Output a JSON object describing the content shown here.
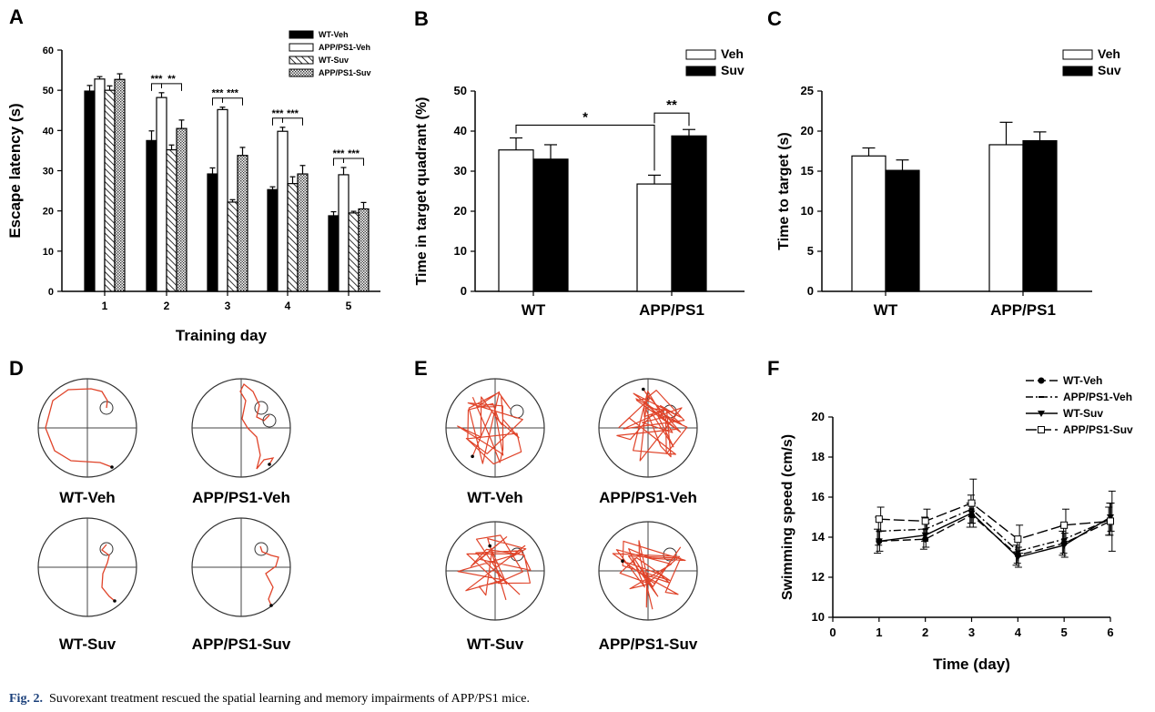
{
  "caption": {
    "label": "Fig. 2.",
    "text": "Suvorexant treatment rescued the spatial learning and memory impairments of APP/PS1 mice."
  },
  "colors": {
    "path": "#e0442a",
    "black": "#000000",
    "white": "#ffffff",
    "caption_label": "#1a3f7a"
  },
  "chart_data": [
    {
      "panel": "A",
      "type": "bar",
      "xlabel": "Training  day",
      "ylabel": "Escape latency (s)",
      "ylim": [
        0,
        60
      ],
      "yticks": [
        0,
        10,
        20,
        30,
        40,
        50,
        60
      ],
      "categories": [
        "1",
        "2",
        "3",
        "4",
        "5"
      ],
      "legend_position": "top-right",
      "series": [
        {
          "name": "WT-Veh",
          "fill": "black",
          "values": [
            49.8,
            37.5,
            29.2,
            25.3,
            18.8
          ],
          "errors": [
            1.4,
            2.4,
            1.5,
            0.7,
            1.0
          ]
        },
        {
          "name": "APP/PS1-Veh",
          "fill": "white",
          "values": [
            52.8,
            48.2,
            45.2,
            39.8,
            29.0
          ],
          "errors": [
            0.6,
            1.2,
            0.6,
            1.0,
            1.8
          ]
        },
        {
          "name": "WT-Suv",
          "fill": "hatch",
          "values": [
            50.0,
            35.2,
            22.2,
            26.8,
            19.5
          ],
          "errors": [
            1.1,
            1.2,
            0.6,
            1.7,
            0.4
          ]
        },
        {
          "name": "APP/PS1-Suv",
          "fill": "dots",
          "values": [
            52.7,
            40.5,
            33.8,
            29.2,
            20.5
          ],
          "errors": [
            1.4,
            2.1,
            2.0,
            2.1,
            1.6
          ]
        }
      ],
      "significance": [
        {
          "day": "2",
          "labels": [
            "***",
            "**"
          ]
        },
        {
          "day": "3",
          "labels": [
            "***",
            "***"
          ]
        },
        {
          "day": "4",
          "labels": [
            "***",
            "***"
          ]
        },
        {
          "day": "5",
          "labels": [
            "***",
            "***"
          ]
        }
      ]
    },
    {
      "panel": "B",
      "type": "bar",
      "xlabel": "",
      "ylabel": "Time in target quadrant (%)",
      "ylim": [
        0,
        50
      ],
      "yticks": [
        0,
        10,
        20,
        30,
        40,
        50
      ],
      "categories": [
        "WT",
        "APP/PS1"
      ],
      "legend_position": "top-right",
      "series": [
        {
          "name": "Veh",
          "fill": "white",
          "values": [
            35.3,
            26.8
          ],
          "errors": [
            3.0,
            2.2
          ]
        },
        {
          "name": "Suv",
          "fill": "black",
          "values": [
            33.0,
            38.8
          ],
          "errors": [
            3.6,
            1.6
          ]
        }
      ],
      "significance": [
        {
          "between": "WT-Veh / APP/PS1-Veh",
          "label": "*"
        },
        {
          "between": "APP/PS1-Veh / APP/PS1-Suv",
          "label": "**"
        }
      ]
    },
    {
      "panel": "C",
      "type": "bar",
      "xlabel": "",
      "ylabel": "Time to target (s)",
      "ylim": [
        0,
        25
      ],
      "yticks": [
        0,
        5,
        10,
        15,
        20,
        25
      ],
      "categories": [
        "WT",
        "APP/PS1"
      ],
      "legend_position": "top-right",
      "series": [
        {
          "name": "Veh",
          "fill": "white",
          "values": [
            16.9,
            18.3
          ],
          "errors": [
            1.0,
            2.8
          ]
        },
        {
          "name": "Suv",
          "fill": "black",
          "values": [
            15.1,
            18.8
          ],
          "errors": [
            1.3,
            1.1
          ]
        }
      ]
    },
    {
      "panel": "F",
      "type": "line",
      "xlabel": "Time (day)",
      "ylabel": "Swimming speed (cm/s)",
      "xlim": [
        0,
        6
      ],
      "ylim": [
        10,
        20
      ],
      "xticks": [
        0,
        1,
        2,
        3,
        4,
        5,
        6
      ],
      "yticks": [
        10,
        12,
        14,
        16,
        18,
        20
      ],
      "x": [
        1,
        2,
        3,
        4,
        5,
        6
      ],
      "legend_position": "top-right",
      "series": [
        {
          "name": "WT-Veh",
          "marker": "circle",
          "dash": "long",
          "values": [
            13.8,
            13.9,
            15.1,
            13.1,
            13.7,
            14.8
          ],
          "errors": [
            0.6,
            0.5,
            0.6,
            0.5,
            0.6,
            0.7
          ]
        },
        {
          "name": "APP/PS1-Veh",
          "marker": "tick",
          "dash": "dashdot",
          "values": [
            14.3,
            14.4,
            15.4,
            13.3,
            13.9,
            14.9
          ],
          "errors": [
            0.7,
            0.6,
            0.7,
            0.6,
            0.7,
            0.8
          ]
        },
        {
          "name": "WT-Suv",
          "marker": "triangle",
          "dash": "solid",
          "values": [
            13.8,
            14.1,
            15.2,
            13.0,
            13.6,
            15.0
          ],
          "errors": [
            0.5,
            0.6,
            0.5,
            0.5,
            0.6,
            0.7
          ]
        },
        {
          "name": "APP/PS1-Suv",
          "marker": "square",
          "dash": "longdash",
          "values": [
            14.9,
            14.8,
            15.7,
            13.9,
            14.6,
            14.8
          ],
          "errors": [
            0.6,
            0.6,
            1.2,
            0.7,
            0.8,
            1.5
          ]
        }
      ]
    }
  ],
  "panel_D": {
    "letter": "D",
    "labels": [
      "WT-Veh",
      "APP/PS1-Veh",
      "WT-Suv",
      "APP/PS1-Suv"
    ]
  },
  "panel_E": {
    "letter": "E",
    "labels": [
      "WT-Veh",
      "APP/PS1-Veh",
      "WT-Suv",
      "APP/PS1-Suv"
    ]
  }
}
